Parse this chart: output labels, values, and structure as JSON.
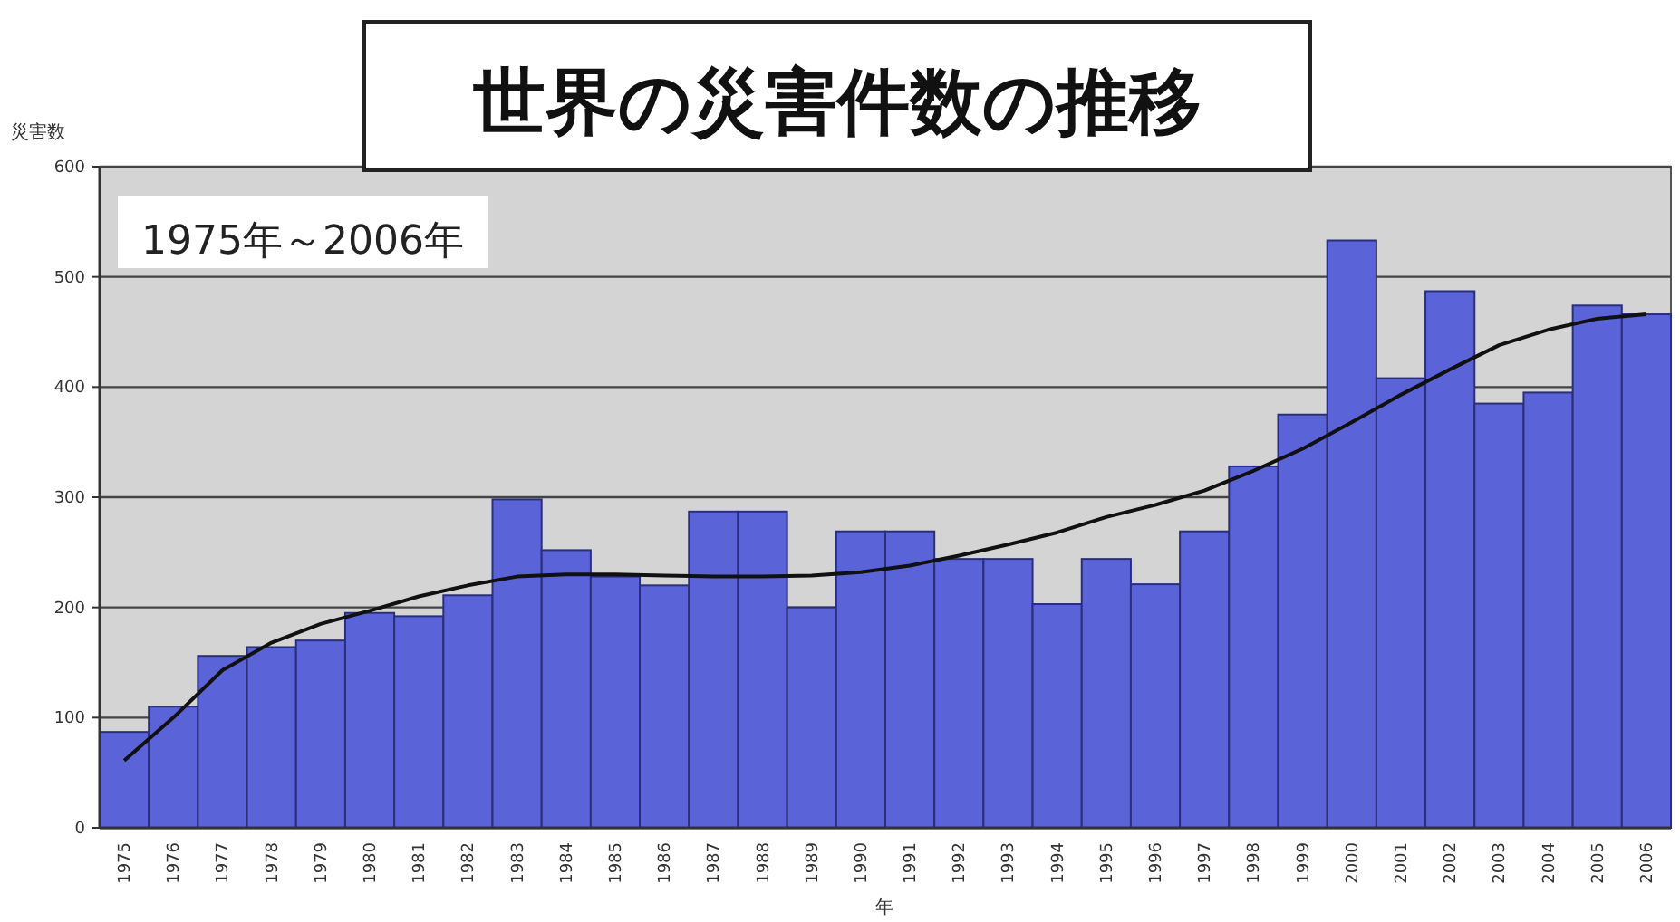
{
  "chart_data": {
    "type": "bar",
    "title": "世界の災害件数の推移",
    "annotations": [
      "1975年～2006年"
    ],
    "ylabel": "災害数",
    "xlabel": "年",
    "categories": [
      "1975",
      "1976",
      "1977",
      "1978",
      "1979",
      "1980",
      "1981",
      "1982",
      "1983",
      "1984",
      "1985",
      "1986",
      "1987",
      "1988",
      "1989",
      "1990",
      "1991",
      "1992",
      "1993",
      "1994",
      "1995",
      "1996",
      "1997",
      "1998",
      "1999",
      "2000",
      "2001",
      "2002",
      "2003",
      "2004",
      "2005",
      "2006"
    ],
    "series": [
      {
        "color": "#5a64d8",
        "values": [
          87,
          110,
          156,
          164,
          170,
          195,
          192,
          211,
          298,
          252,
          228,
          220,
          287,
          287,
          200,
          269,
          269,
          244,
          244,
          203,
          244,
          221,
          269,
          328,
          375,
          533,
          408,
          487,
          385,
          395,
          474,
          466
        ]
      },
      {
        "type": "line",
        "color": "#111111",
        "values": [
          61,
          100,
          143,
          168,
          185,
          197,
          210,
          220,
          228,
          230,
          230,
          229,
          228,
          228,
          229,
          232,
          238,
          247,
          257,
          268,
          282,
          293,
          306,
          324,
          344,
          368,
          393,
          416,
          438,
          452,
          462,
          466
        ]
      }
    ],
    "ylim": [
      0,
      600
    ],
    "yticks": [
      0,
      100,
      200,
      300,
      400,
      500,
      600
    ],
    "grid": "y"
  }
}
